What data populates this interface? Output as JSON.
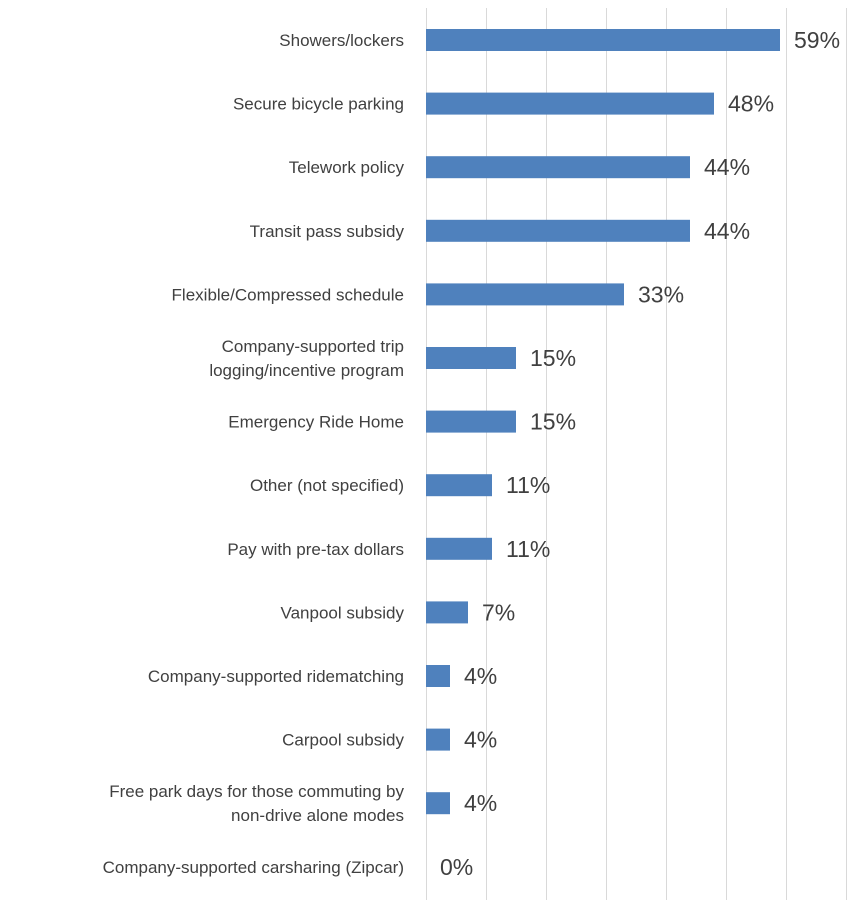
{
  "chart_data": {
    "type": "bar",
    "orientation": "horizontal",
    "categories": [
      [
        "Showers/lockers"
      ],
      [
        "Secure bicycle parking"
      ],
      [
        "Telework policy"
      ],
      [
        "Transit pass subsidy"
      ],
      [
        "Flexible/Compressed schedule"
      ],
      [
        "Company-supported trip",
        "logging/incentive program"
      ],
      [
        "Emergency Ride Home"
      ],
      [
        "Other (not specified)"
      ],
      [
        "Pay with pre-tax dollars"
      ],
      [
        "Vanpool subsidy"
      ],
      [
        "Company-supported ridematching"
      ],
      [
        "Carpool subsidy"
      ],
      [
        "Free park days for those commuting by",
        "non-drive alone modes"
      ],
      [
        "Company-supported carsharing (Zipcar)"
      ]
    ],
    "values": [
      59,
      48,
      44,
      44,
      33,
      15,
      15,
      11,
      11,
      7,
      4,
      4,
      4,
      0
    ],
    "value_labels": [
      "59%",
      "48%",
      "44%",
      "44%",
      "33%",
      "15%",
      "15%",
      "11%",
      "11%",
      "7%",
      "4%",
      "4%",
      "4%",
      "0%"
    ],
    "xlim": [
      0,
      70
    ],
    "grid": true,
    "bar_color": "#4f81bd",
    "title": "",
    "xlabel": "",
    "ylabel": ""
  }
}
